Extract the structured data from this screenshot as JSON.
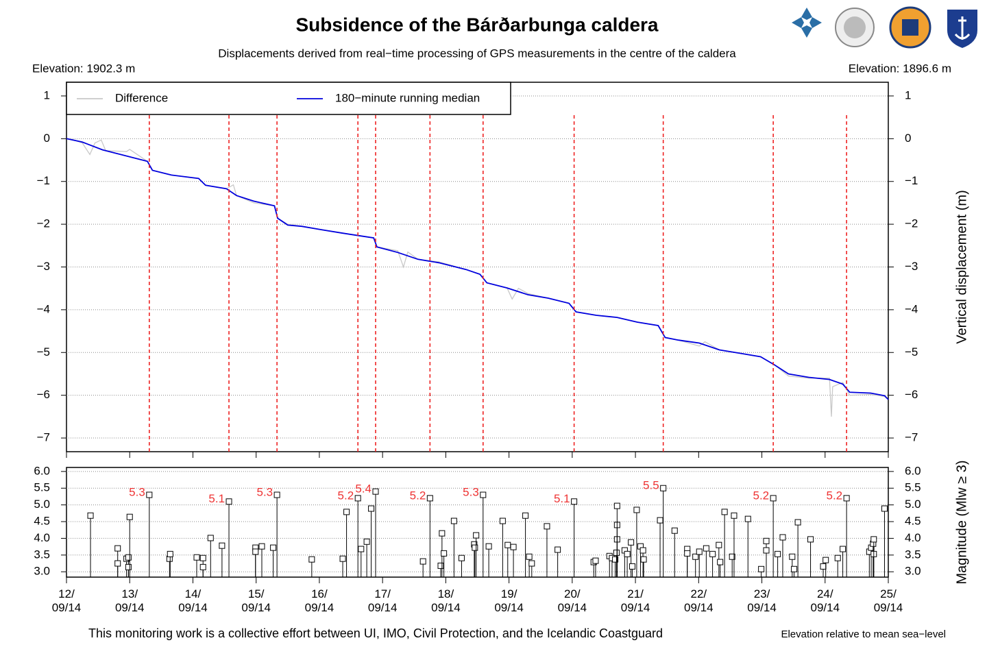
{
  "header": {
    "footer": "This monitoring work is a collective effort between UI, IMO, Civil Protection, and the Icelandic Coastguard",
    "note": "Elevation relative to mean sea−level"
  },
  "chart_data": [
    {
      "type": "line",
      "title": "Subsidence of the Bárðarbunga caldera",
      "subtitle": "Displacements derived from real−time processing of GPS measurements in the centre of the caldera",
      "annotation_left": "Elevation: 1902.3 m",
      "annotation_right": "Elevation: 1896.6 m",
      "y_label": "Vertical displacement (m)",
      "legend": "top-left",
      "grid": true,
      "xlim": [
        12,
        25
      ],
      "xticks": [
        12,
        13,
        14,
        15,
        16,
        17,
        18,
        19,
        20,
        21,
        22,
        23,
        24,
        25
      ],
      "ylim": [
        -7.32,
        1.32
      ],
      "yticks": [
        {
          "value": 1,
          "label": "1"
        },
        {
          "value": 0,
          "label": "0"
        },
        {
          "value": -1,
          "label": "−1"
        },
        {
          "value": -2,
          "label": "−2"
        },
        {
          "value": -3,
          "label": "−3"
        },
        {
          "value": -4,
          "label": "−4"
        },
        {
          "value": -5,
          "label": "−5"
        },
        {
          "value": -6,
          "label": "−6"
        },
        {
          "value": -7,
          "label": "−7"
        }
      ],
      "series": [
        {
          "name": "Difference",
          "color": "#c8c8c8",
          "x": [
            12.0,
            12.1,
            12.25,
            12.37,
            12.45,
            12.55,
            12.62,
            12.95,
            13.0,
            13.28,
            13.36,
            13.66,
            14.09,
            14.2,
            14.53,
            14.64,
            14.69,
            14.96,
            15.29,
            15.34,
            15.5,
            15.72,
            16.04,
            16.37,
            16.59,
            16.86,
            16.91,
            17.24,
            17.33,
            17.4,
            17.56,
            17.89,
            18.32,
            18.54,
            18.65,
            18.97,
            19.05,
            19.15,
            19.3,
            19.62,
            19.95,
            20.06,
            20.38,
            20.71,
            21.03,
            21.36,
            21.47,
            21.68,
            22.01,
            22.1,
            22.33,
            22.66,
            22.98,
            23.2,
            23.42,
            23.74,
            24.07,
            24.1,
            24.12,
            24.28,
            24.39,
            24.72,
            24.94,
            25.0
          ],
          "values": [
            0,
            -0.02,
            -0.1,
            -0.37,
            -0.1,
            -0.03,
            -0.28,
            -0.3,
            -0.25,
            -0.53,
            -0.74,
            -0.85,
            -0.93,
            -1.09,
            -1.17,
            -1.08,
            -1.33,
            -1.5,
            -1.57,
            -1.86,
            -2.0,
            -2.05,
            -2.13,
            -2.21,
            -2.26,
            -2.32,
            -2.53,
            -2.62,
            -3.0,
            -2.65,
            -2.82,
            -2.88,
            -3.06,
            -3.17,
            -3.37,
            -3.49,
            -3.75,
            -3.5,
            -3.62,
            -3.73,
            -3.85,
            -4.05,
            -4.13,
            -4.18,
            -4.29,
            -4.37,
            -4.65,
            -4.71,
            -4.85,
            -4.75,
            -4.94,
            -5.02,
            -5.1,
            -5.29,
            -5.55,
            -5.6,
            -5.6,
            -6.5,
            -5.8,
            -5.7,
            -6.0,
            -5.98,
            -6.03,
            -6.1
          ]
        },
        {
          "name": "180−minute running median",
          "color": "#0000dd",
          "x": [
            12.0,
            12.25,
            12.57,
            13.28,
            13.36,
            13.66,
            14.09,
            14.2,
            14.53,
            14.69,
            14.96,
            15.29,
            15.34,
            15.5,
            15.72,
            16.04,
            16.37,
            16.59,
            16.86,
            16.91,
            17.24,
            17.56,
            17.89,
            18.32,
            18.54,
            18.65,
            18.97,
            19.3,
            19.62,
            19.95,
            20.06,
            20.38,
            20.71,
            21.03,
            21.36,
            21.47,
            21.68,
            22.01,
            22.33,
            22.66,
            22.98,
            23.2,
            23.42,
            23.74,
            24.07,
            24.28,
            24.39,
            24.72,
            24.94,
            25.0
          ],
          "values": [
            0,
            -0.08,
            -0.26,
            -0.53,
            -0.74,
            -0.85,
            -0.93,
            -1.09,
            -1.17,
            -1.33,
            -1.46,
            -1.57,
            -1.86,
            -2.02,
            -2.05,
            -2.13,
            -2.21,
            -2.26,
            -2.32,
            -2.53,
            -2.66,
            -2.82,
            -2.9,
            -3.06,
            -3.17,
            -3.37,
            -3.49,
            -3.65,
            -3.73,
            -3.85,
            -4.05,
            -4.13,
            -4.18,
            -4.29,
            -4.37,
            -4.65,
            -4.71,
            -4.78,
            -4.94,
            -5.02,
            -5.1,
            -5.29,
            -5.5,
            -5.58,
            -5.63,
            -5.74,
            -5.93,
            -5.95,
            -6.01,
            -6.1
          ]
        }
      ]
    },
    {
      "type": "stem",
      "y_label": "Magnitude (Mlw ≥ 3)",
      "grid": true,
      "color": "#000000",
      "label_color": "#ee3333",
      "event_color": "#ee2222",
      "xlim": [
        12,
        25
      ],
      "xticks": [
        {
          "value": 12,
          "label": "12/09/14"
        },
        {
          "value": 13,
          "label": "13/09/14"
        },
        {
          "value": 14,
          "label": "14/09/14"
        },
        {
          "value": 15,
          "label": "15/09/14"
        },
        {
          "value": 16,
          "label": "16/09/14"
        },
        {
          "value": 17,
          "label": "17/09/14"
        },
        {
          "value": 18,
          "label": "18/09/14"
        },
        {
          "value": 19,
          "label": "19/09/14"
        },
        {
          "value": 20,
          "label": "20/09/14"
        },
        {
          "value": 21,
          "label": "21/09/14"
        },
        {
          "value": 22,
          "label": "22/09/14"
        },
        {
          "value": 23,
          "label": "23/09/14"
        },
        {
          "value": 24,
          "label": "24/09/14"
        },
        {
          "value": 25,
          "label": "25/09/14"
        }
      ],
      "ylim": [
        2.84,
        6.12
      ],
      "yticks": [
        {
          "value": 3,
          "label": "3.0"
        },
        {
          "value": 3.5,
          "label": "3.5"
        },
        {
          "value": 4,
          "label": "4.0"
        },
        {
          "value": 4.5,
          "label": "4.5"
        },
        {
          "value": 5,
          "label": "5.0"
        },
        {
          "value": 5.5,
          "label": "5.5"
        },
        {
          "value": 6,
          "label": "6.0"
        }
      ],
      "x": [
        12.38,
        12.81,
        12.81,
        12.95,
        12.98,
        12.98,
        13.0,
        13.31,
        13.63,
        13.64,
        14.06,
        14.16,
        14.16,
        14.28,
        14.46,
        14.57,
        14.99,
        14.99,
        15.09,
        15.27,
        15.33,
        15.88,
        16.37,
        16.43,
        16.61,
        16.66,
        16.75,
        16.82,
        16.89,
        17.64,
        17.75,
        17.92,
        17.94,
        17.97,
        18.13,
        18.25,
        18.45,
        18.46,
        18.48,
        18.59,
        18.68,
        18.9,
        18.98,
        19.07,
        19.26,
        19.32,
        19.36,
        19.6,
        19.77,
        20.03,
        20.34,
        20.37,
        20.59,
        20.63,
        20.68,
        20.7,
        20.71,
        20.71,
        20.71,
        20.83,
        20.87,
        20.93,
        20.95,
        21.02,
        21.08,
        21.12,
        21.13,
        21.39,
        21.44,
        21.62,
        21.82,
        21.82,
        21.95,
        22.01,
        22.12,
        22.22,
        22.32,
        22.34,
        22.41,
        22.53,
        22.56,
        22.78,
        22.99,
        23.07,
        23.07,
        23.18,
        23.25,
        23.33,
        23.48,
        23.51,
        23.57,
        23.77,
        23.97,
        24.01,
        24.2,
        24.28,
        24.34,
        24.7,
        24.73,
        24.76,
        24.77,
        24.77,
        24.94
      ],
      "values": [
        4.68,
        3.7,
        3.25,
        3.39,
        3.43,
        3.14,
        4.64,
        5.3,
        3.39,
        3.53,
        3.43,
        3.41,
        3.14,
        4.01,
        3.78,
        5.1,
        3.72,
        3.6,
        3.76,
        3.72,
        5.3,
        3.37,
        3.39,
        4.79,
        5.2,
        3.68,
        3.9,
        4.89,
        5.4,
        3.31,
        5.2,
        3.18,
        4.15,
        3.55,
        4.52,
        3.41,
        3.82,
        3.72,
        4.09,
        5.3,
        3.76,
        4.52,
        3.8,
        3.74,
        4.68,
        3.45,
        3.25,
        4.36,
        3.66,
        5.1,
        3.29,
        3.33,
        3.47,
        3.41,
        3.37,
        3.57,
        3.97,
        4.4,
        4.97,
        3.64,
        3.53,
        3.88,
        3.16,
        4.85,
        3.76,
        3.64,
        3.37,
        4.54,
        5.5,
        4.23,
        3.68,
        3.55,
        3.45,
        3.6,
        3.7,
        3.53,
        3.8,
        3.29,
        4.79,
        3.45,
        4.68,
        4.58,
        3.08,
        3.92,
        3.64,
        5.2,
        3.53,
        4.03,
        3.45,
        3.08,
        4.48,
        3.97,
        3.16,
        3.35,
        3.41,
        3.68,
        5.2,
        3.6,
        3.72,
        3.84,
        3.53,
        3.97,
        4.89
      ],
      "value_labels": [
        null,
        null,
        null,
        null,
        null,
        null,
        null,
        "5.3",
        null,
        null,
        null,
        null,
        null,
        null,
        null,
        "5.1",
        null,
        null,
        null,
        null,
        "5.3",
        null,
        null,
        null,
        "5.2",
        null,
        null,
        null,
        "5.4",
        null,
        "5.2",
        null,
        null,
        null,
        null,
        null,
        null,
        null,
        null,
        "5.3",
        null,
        null,
        null,
        null,
        null,
        null,
        null,
        null,
        null,
        "5.1",
        null,
        null,
        null,
        null,
        null,
        null,
        null,
        null,
        null,
        null,
        null,
        null,
        null,
        null,
        null,
        null,
        null,
        null,
        "5.5",
        null,
        null,
        null,
        null,
        null,
        null,
        null,
        null,
        null,
        null,
        null,
        null,
        null,
        null,
        null,
        null,
        "5.2",
        null,
        null,
        null,
        null,
        null,
        null,
        null,
        null,
        null,
        null,
        "5.2",
        null,
        null,
        null,
        null,
        null,
        null
      ]
    }
  ]
}
